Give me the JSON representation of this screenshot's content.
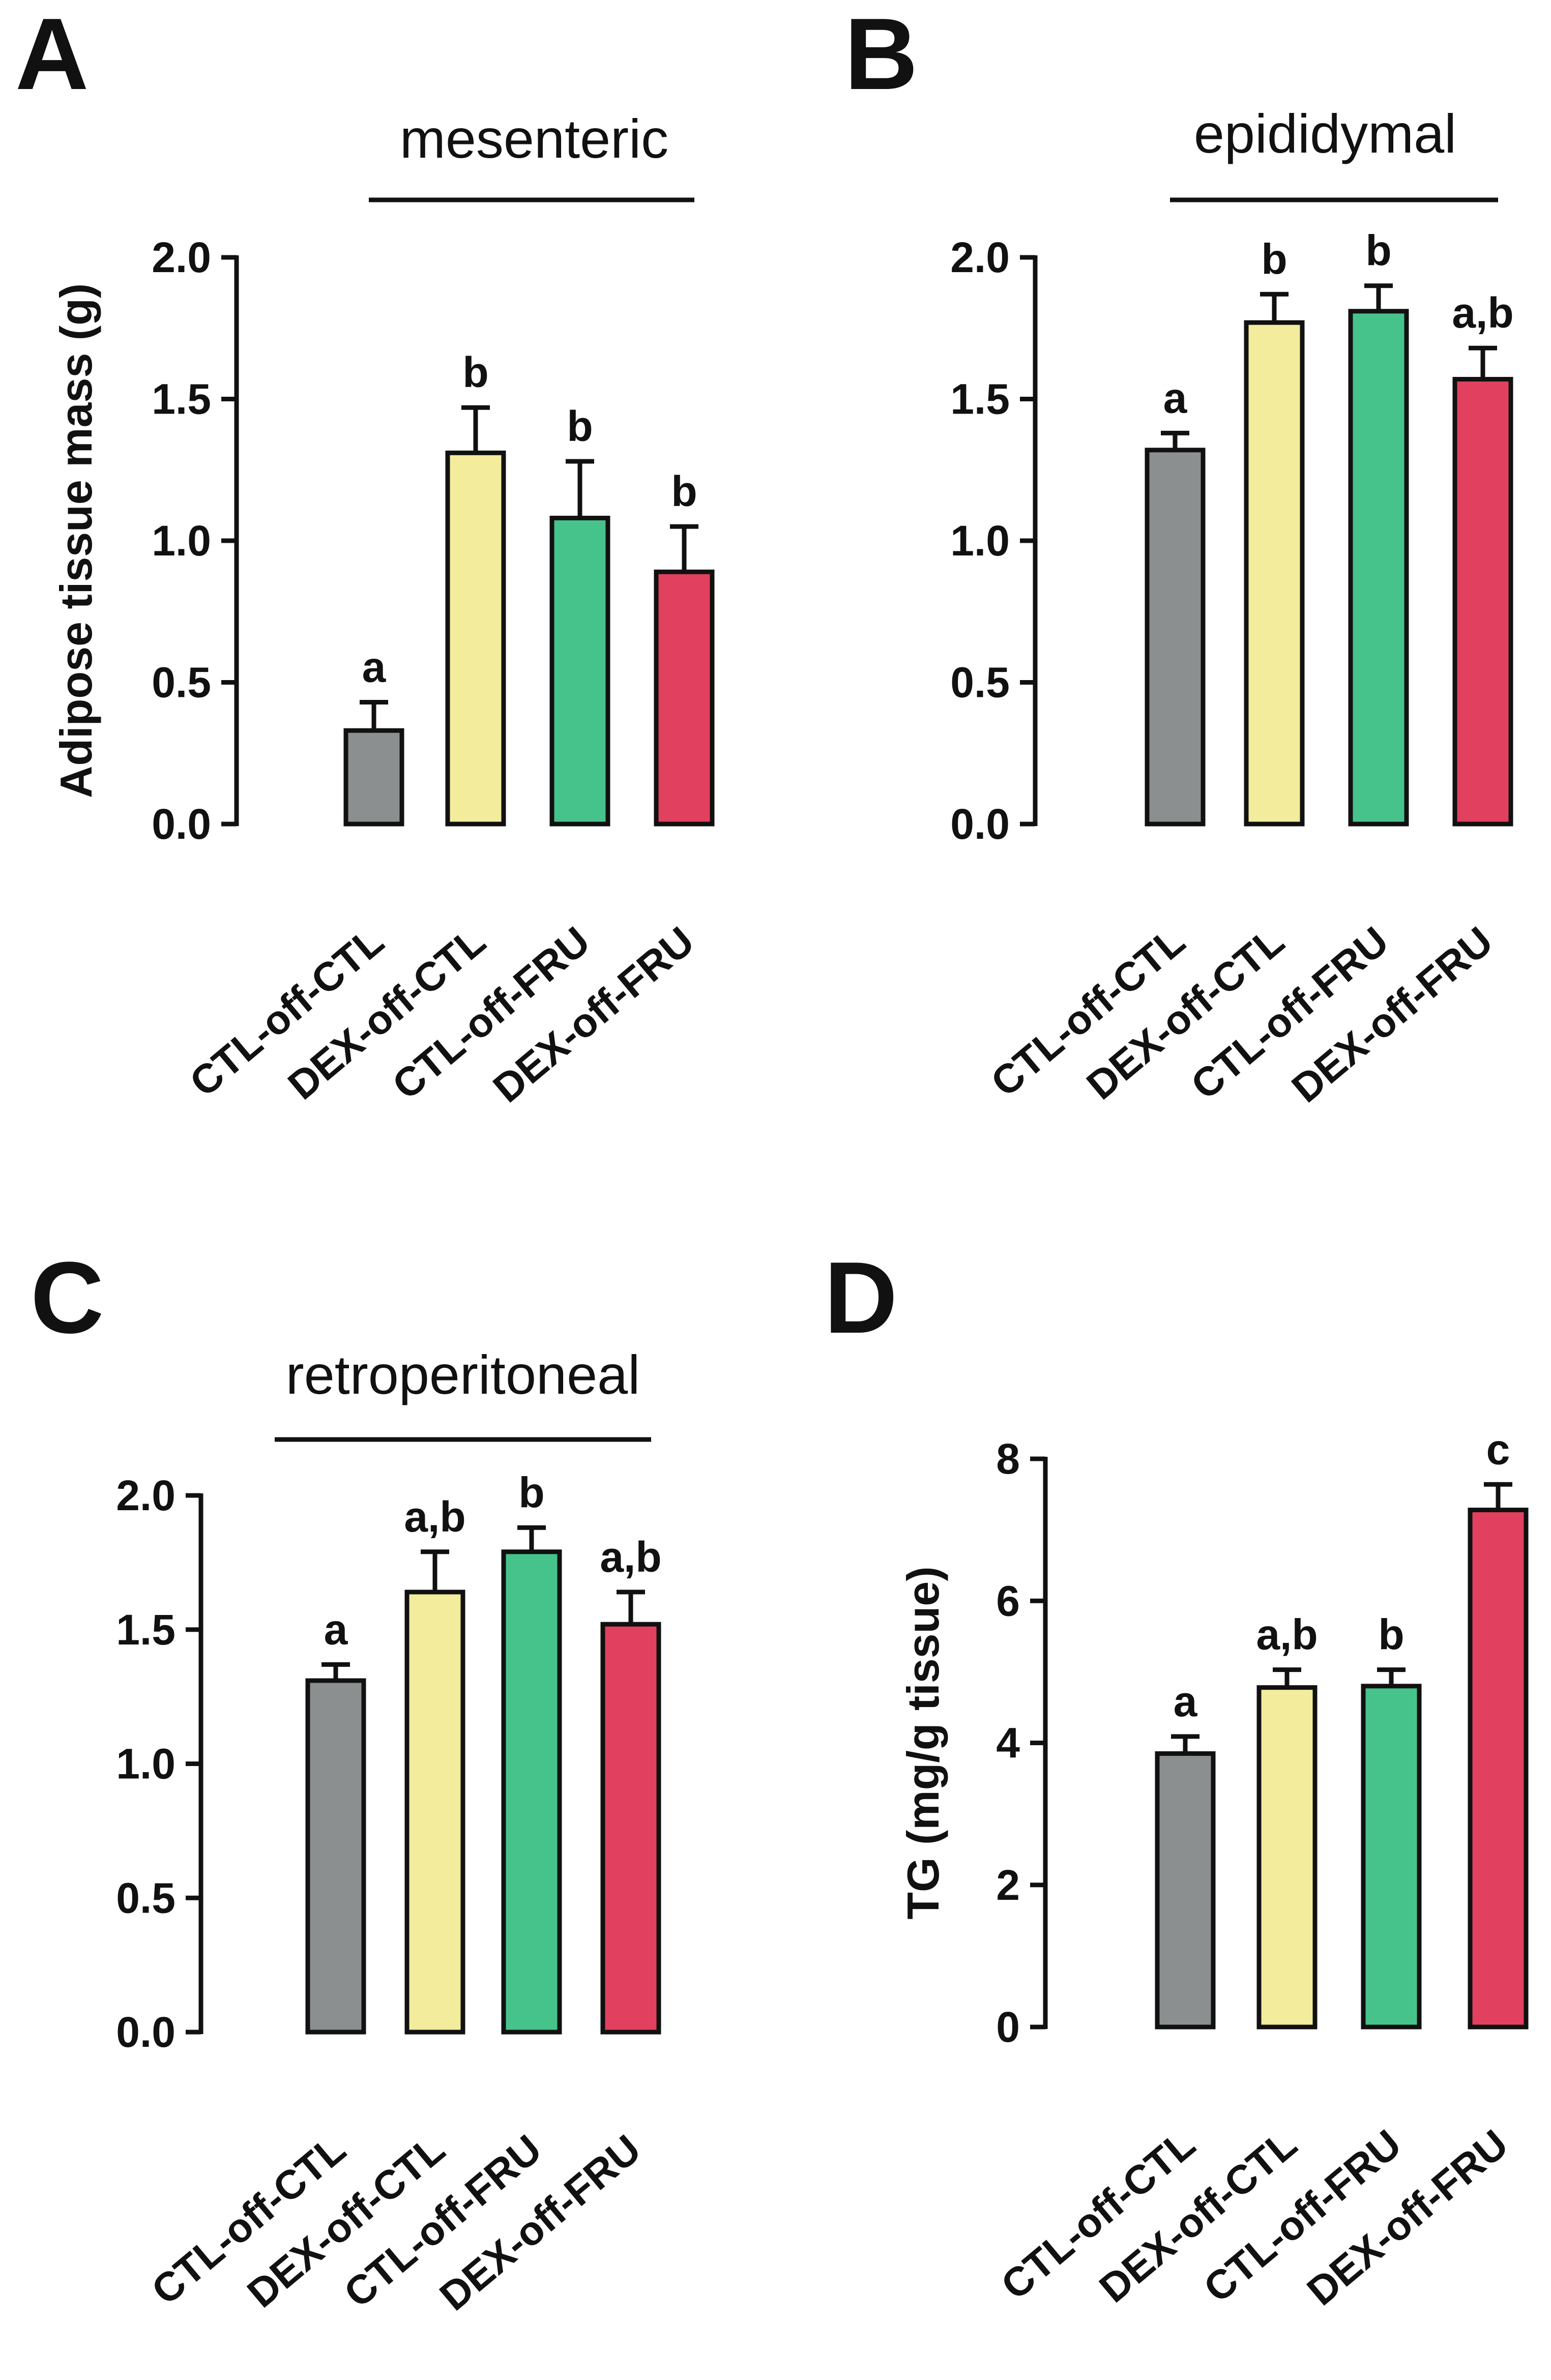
{
  "colors": {
    "CTL-off-CTL": "#8c8f8f",
    "DEX-off-CTL": "#f2ec9c",
    "CTL-off-FRU": "#46c38a",
    "DEX-off-FRU": "#e1405f"
  },
  "chart_data": [
    {
      "panel": "A",
      "type": "bar",
      "group_title": "mesenteric",
      "ylabel": "Adipose tissue mass (g)",
      "categories": [
        "CTL-off-CTL",
        "DEX-off-CTL",
        "CTL-off-FRU",
        "DEX-off-FRU"
      ],
      "values": [
        0.33,
        1.31,
        1.08,
        0.89
      ],
      "errors": [
        0.1,
        0.16,
        0.2,
        0.16
      ],
      "significance": [
        "a",
        "b",
        "b",
        "b"
      ],
      "ylim": [
        0,
        2.0
      ],
      "yticks": [
        "0.0",
        "0.5",
        "1.0",
        "1.5",
        "2.0"
      ],
      "grid": false
    },
    {
      "panel": "B",
      "type": "bar",
      "group_title": "epididymal",
      "ylabel": "",
      "categories": [
        "CTL-off-CTL",
        "DEX-off-CTL",
        "CTL-off-FRU",
        "DEX-off-FRU"
      ],
      "values": [
        1.32,
        1.77,
        1.81,
        1.57
      ],
      "errors": [
        0.06,
        0.1,
        0.09,
        0.11
      ],
      "significance": [
        "a",
        "b",
        "b",
        "a,b"
      ],
      "ylim": [
        0,
        2.0
      ],
      "yticks": [
        "0.0",
        "0.5",
        "1.0",
        "1.5",
        "2.0"
      ],
      "grid": false
    },
    {
      "panel": "C",
      "type": "bar",
      "group_title": "retroperitoneal",
      "ylabel": "",
      "categories": [
        "CTL-off-CTL",
        "DEX-off-CTL",
        "CTL-off-FRU",
        "DEX-off-FRU"
      ],
      "values": [
        1.31,
        1.64,
        1.79,
        1.52
      ],
      "errors": [
        0.06,
        0.15,
        0.09,
        0.12
      ],
      "significance": [
        "a",
        "a,b",
        "b",
        "a,b"
      ],
      "ylim": [
        0,
        2.0
      ],
      "yticks": [
        "0.0",
        "0.5",
        "1.0",
        "1.5",
        "2.0"
      ],
      "grid": false
    },
    {
      "panel": "D",
      "type": "bar",
      "group_title": "",
      "ylabel": "TG (mg/g tissue)",
      "categories": [
        "CTL-off-CTL",
        "DEX-off-CTL",
        "CTL-off-FRU",
        "DEX-off-FRU"
      ],
      "values": [
        3.85,
        4.78,
        4.8,
        7.28
      ],
      "errors": [
        0.24,
        0.25,
        0.23,
        0.36
      ],
      "significance": [
        "a",
        "a,b",
        "b",
        "c"
      ],
      "ylim": [
        0,
        8
      ],
      "yticks": [
        "0",
        "2",
        "4",
        "6",
        "8"
      ],
      "grid": false
    }
  ]
}
